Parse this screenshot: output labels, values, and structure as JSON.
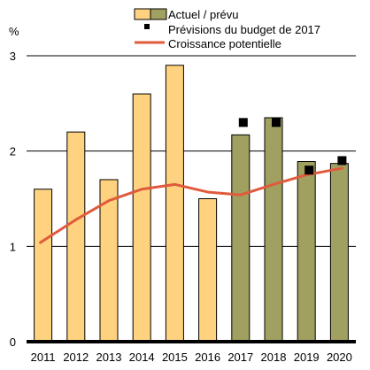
{
  "chart_data": {
    "type": "bar",
    "unit_label": "%",
    "categories": [
      "2011",
      "2012",
      "2013",
      "2014",
      "2015",
      "2016",
      "2017",
      "2018",
      "2019",
      "2020"
    ],
    "series": [
      {
        "name": "Actuel / prévu",
        "type": "bar",
        "values": [
          1.6,
          2.2,
          1.7,
          2.6,
          2.9,
          1.5,
          2.17,
          2.35,
          1.89,
          1.87
        ],
        "actual_color": "#FFD27F",
        "forecast_color": "#A0A060",
        "forecast_start_index": 6
      },
      {
        "name": "Prévisions du budget de 2017",
        "type": "scatter",
        "values": [
          null,
          null,
          null,
          null,
          null,
          null,
          2.3,
          2.3,
          1.8,
          1.9
        ],
        "color": "#000000"
      },
      {
        "name": "Croissance potentielle",
        "type": "line",
        "values": [
          1.04,
          1.28,
          1.48,
          1.6,
          1.65,
          1.57,
          1.54,
          1.65,
          1.75,
          1.82
        ],
        "color": "#E05A3C"
      }
    ],
    "ylim": [
      0,
      3
    ],
    "yticks": [
      "0",
      "1",
      "2",
      "3"
    ],
    "grid": true,
    "legend_position": "top-center"
  }
}
